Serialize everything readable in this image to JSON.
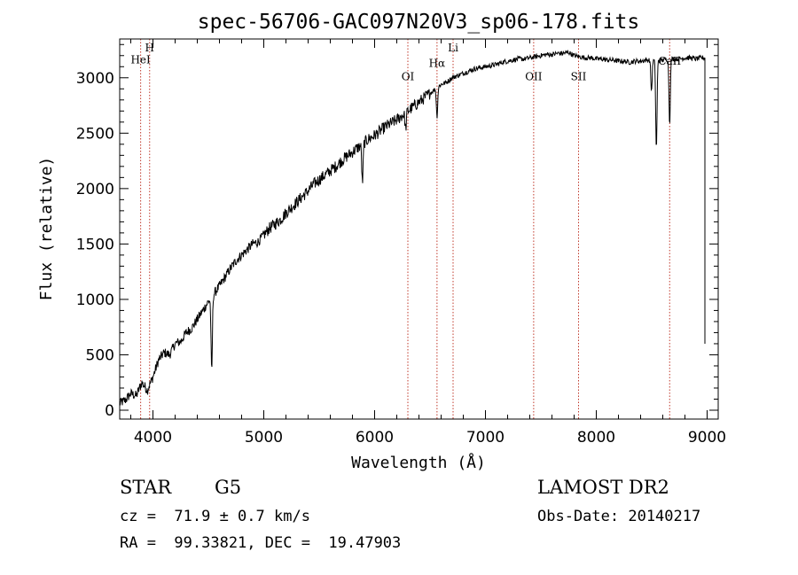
{
  "chart_data": {
    "type": "line",
    "title": "spec-56706-GAC097N20V3_sp06-178.fits",
    "xlabel": "Wavelength (Å)",
    "ylabel": "Flux (relative)",
    "xlim": [
      3700,
      9100
    ],
    "ylim": [
      -80,
      3350
    ],
    "xticks": [
      4000,
      5000,
      6000,
      7000,
      8000,
      9000
    ],
    "yticks": [
      0,
      500,
      1000,
      1500,
      2000,
      2500,
      3000
    ],
    "grid": false,
    "spectrum": {
      "x": [
        3700,
        3750,
        3800,
        3850,
        3900,
        3950,
        4000,
        4050,
        4100,
        4150,
        4200,
        4250,
        4300,
        4350,
        4400,
        4450,
        4500,
        4550,
        4600,
        4650,
        4700,
        4750,
        4800,
        4850,
        4900,
        4950,
        5000,
        5050,
        5100,
        5150,
        5200,
        5250,
        5300,
        5350,
        5400,
        5450,
        5500,
        5550,
        5600,
        5650,
        5700,
        5750,
        5800,
        5850,
        5900,
        5950,
        6000,
        6050,
        6100,
        6150,
        6200,
        6250,
        6300,
        6350,
        6400,
        6450,
        6500,
        6550,
        6600,
        6650,
        6700,
        6750,
        6800,
        6850,
        6900,
        6950,
        7000,
        7050,
        7100,
        7150,
        7200,
        7250,
        7300,
        7350,
        7400,
        7450,
        7500,
        7550,
        7600,
        7650,
        7700,
        7750,
        7800,
        7850,
        7900,
        7950,
        8000,
        8050,
        8100,
        8150,
        8200,
        8250,
        8300,
        8350,
        8400,
        8450,
        8500,
        8550,
        8600,
        8650,
        8700,
        8750,
        8800,
        8850,
        8900,
        8950,
        8980
      ],
      "y": [
        60,
        90,
        150,
        130,
        250,
        180,
        300,
        450,
        520,
        500,
        600,
        620,
        700,
        740,
        820,
        900,
        980,
        1050,
        1120,
        1200,
        1280,
        1350,
        1400,
        1450,
        1500,
        1520,
        1580,
        1640,
        1680,
        1720,
        1780,
        1830,
        1880,
        1930,
        1980,
        2040,
        2080,
        2120,
        2160,
        2200,
        2250,
        2290,
        2330,
        2370,
        2410,
        2450,
        2480,
        2520,
        2560,
        2590,
        2620,
        2660,
        2700,
        2740,
        2780,
        2820,
        2860,
        2900,
        2940,
        2960,
        3000,
        3020,
        3040,
        3060,
        3080,
        3090,
        3100,
        3110,
        3120,
        3140,
        3150,
        3160,
        3170,
        3170,
        3180,
        3190,
        3200,
        3210,
        3210,
        3220,
        3220,
        3230,
        3200,
        3190,
        3180,
        3180,
        3170,
        3170,
        3160,
        3160,
        3150,
        3150,
        3140,
        3150,
        3150,
        3160,
        3160,
        3150,
        3160,
        3170,
        3170,
        3170,
        3180,
        3180,
        3170,
        3180,
        3180
      ]
    },
    "absorption_features": [
      {
        "x": 4530,
        "depth": 680
      },
      {
        "x": 5890,
        "depth": 350
      },
      {
        "x": 6280,
        "depth": 150
      },
      {
        "x": 6563,
        "depth": 260
      },
      {
        "x": 8498,
        "depth": 280
      },
      {
        "x": 8542,
        "depth": 800
      },
      {
        "x": 8662,
        "depth": 580
      }
    ],
    "line_markers": [
      {
        "label": "HeI",
        "x": 3889,
        "label_y": 3130
      },
      {
        "label": "H",
        "x": 3970,
        "label_y": 3240
      },
      {
        "label": "OI",
        "x": 6300,
        "label_y": 2980
      },
      {
        "label": "Hα",
        "x": 6563,
        "label_y": 3100
      },
      {
        "label": "Li",
        "x": 6708,
        "label_y": 3240
      },
      {
        "label": "OII",
        "x": 7435,
        "label_y": 2980
      },
      {
        "label": "SII",
        "x": 7840,
        "label_y": 2980
      },
      {
        "label": "CaII",
        "x": 8662,
        "label_y": 3120
      }
    ],
    "marker_color": "#c0392b"
  },
  "info": {
    "object_class": "STAR",
    "subclass": "G5",
    "redshift": "cz =  71.9 ± 0.7 km/s",
    "coords": "RA =  99.33821, DEC =  19.47903",
    "survey": "LAMOST DR2",
    "obs_date": "Obs-Date: 20140217"
  }
}
